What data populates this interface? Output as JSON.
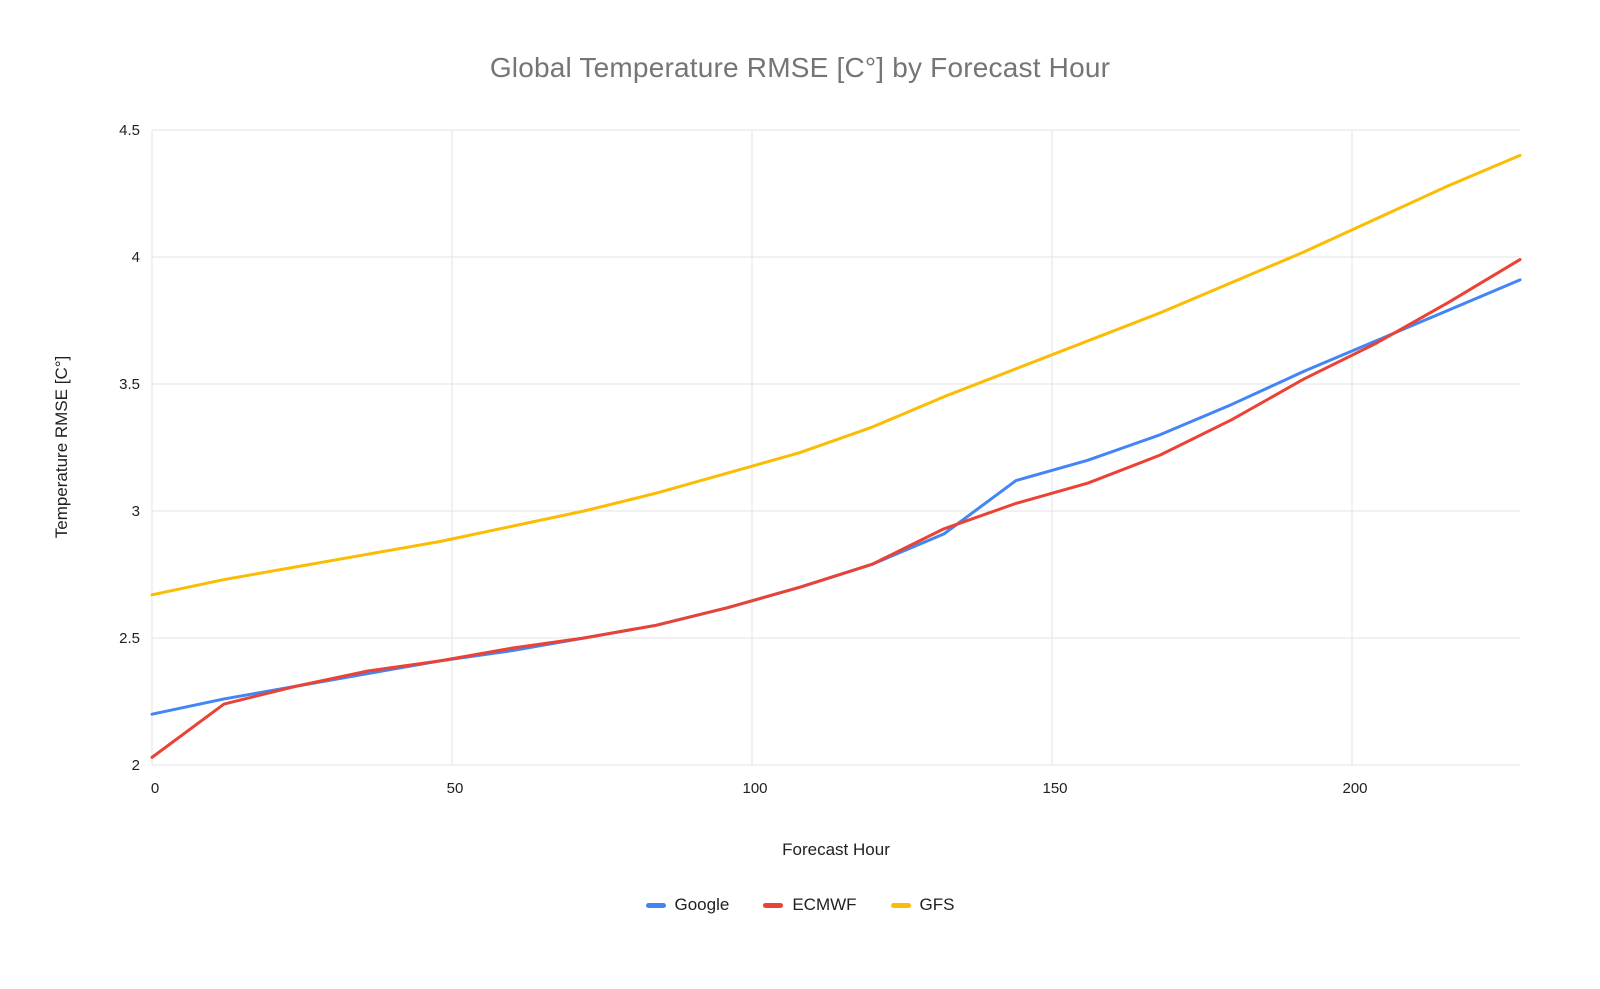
{
  "chart_data": {
    "type": "line",
    "title": "Global Temperature RMSE [C°] by Forecast Hour",
    "xlabel": "Forecast Hour",
    "ylabel": "Temperature RMSE [C°]",
    "xlim": [
      0,
      228
    ],
    "ylim": [
      2,
      4.5
    ],
    "x_ticks": [
      0,
      50,
      100,
      150,
      200
    ],
    "y_ticks": [
      2,
      2.5,
      3,
      3.5,
      4,
      4.5
    ],
    "grid": true,
    "legend_position": "bottom",
    "x": [
      0,
      12,
      24,
      36,
      48,
      60,
      72,
      84,
      96,
      108,
      120,
      132,
      144,
      156,
      168,
      180,
      192,
      204,
      216,
      228
    ],
    "series": [
      {
        "name": "Google",
        "color": "#4285F4",
        "values": [
          2.2,
          2.26,
          2.31,
          2.36,
          2.41,
          2.45,
          2.5,
          2.55,
          2.62,
          2.7,
          2.79,
          2.91,
          3.12,
          3.2,
          3.3,
          3.42,
          3.55,
          3.67,
          3.79,
          3.91
        ]
      },
      {
        "name": "ECMWF",
        "color": "#EA4335",
        "values": [
          2.03,
          2.24,
          2.31,
          2.37,
          2.41,
          2.46,
          2.5,
          2.55,
          2.62,
          2.7,
          2.79,
          2.93,
          3.03,
          3.11,
          3.22,
          3.36,
          3.52,
          3.66,
          3.82,
          3.99
        ]
      },
      {
        "name": "GFS",
        "color": "#FBBC04",
        "values": [
          2.67,
          2.73,
          2.78,
          2.83,
          2.88,
          2.94,
          3.0,
          3.07,
          3.15,
          3.23,
          3.33,
          3.45,
          3.56,
          3.67,
          3.78,
          3.9,
          4.02,
          4.15,
          4.28,
          4.4
        ]
      }
    ]
  }
}
